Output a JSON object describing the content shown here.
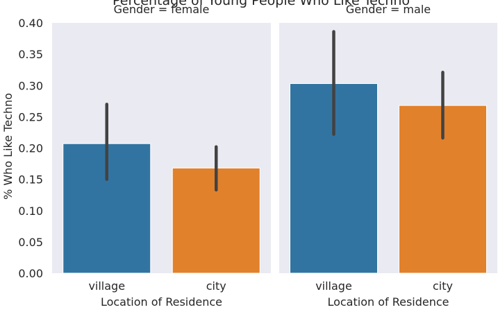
{
  "chart_data": {
    "type": "bar",
    "title": "Percentage of Young People Who Like Techno",
    "ylabel": "% Who Like Techno",
    "xlabel": "Location of Residence",
    "ylim": [
      0,
      0.4
    ],
    "yticks": [
      "0.00",
      "0.05",
      "0.10",
      "0.15",
      "0.20",
      "0.25",
      "0.30",
      "0.35",
      "0.40"
    ],
    "categories": [
      "village",
      "city"
    ],
    "colors": [
      "#3274a1",
      "#e1812c"
    ],
    "grid": false,
    "panels": [
      {
        "title": "Gender = female",
        "values": [
          0.207,
          0.168
        ],
        "ci_low": [
          0.15,
          0.133
        ],
        "ci_high": [
          0.27,
          0.202
        ]
      },
      {
        "title": "Gender = male",
        "values": [
          0.303,
          0.268
        ],
        "ci_low": [
          0.222,
          0.216
        ],
        "ci_high": [
          0.386,
          0.321
        ]
      }
    ]
  }
}
